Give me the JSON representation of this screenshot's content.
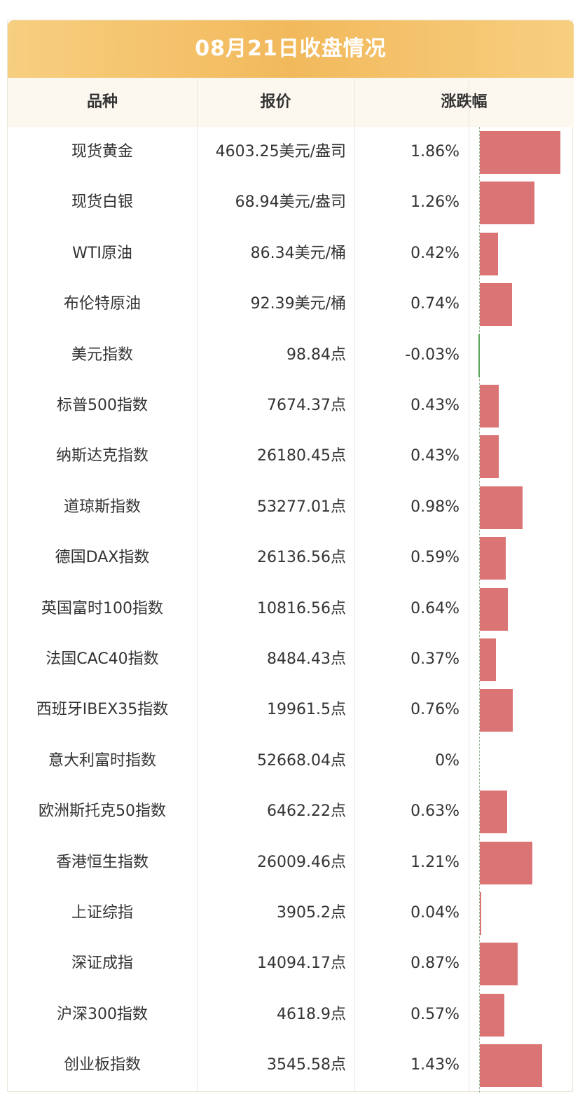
{
  "header": {
    "title": "08月21日收盘情况"
  },
  "table": {
    "columns": [
      "品种",
      "报价",
      "涨跌幅"
    ],
    "rows": [
      {
        "name": "现货黄金",
        "price": "4603.25美元/盎司",
        "change": {
          "value": 1.86,
          "label": "1.86%"
        }
      },
      {
        "name": "现货白银",
        "price": "68.94美元/盎司",
        "change": {
          "value": 1.26,
          "label": "1.26%"
        }
      },
      {
        "name": "WTI原油",
        "price": "86.34美元/桶",
        "change": {
          "value": 0.42,
          "label": "0.42%"
        }
      },
      {
        "name": "布伦特原油",
        "price": "92.39美元/桶",
        "change": {
          "value": 0.74,
          "label": "0.74%"
        }
      },
      {
        "name": "美元指数",
        "price": "98.84点",
        "change": {
          "value": -0.03,
          "label": "-0.03%"
        }
      },
      {
        "name": "标普500指数",
        "price": "7674.37点",
        "change": {
          "value": 0.43,
          "label": "0.43%"
        }
      },
      {
        "name": "纳斯达克指数",
        "price": "26180.45点",
        "change": {
          "value": 0.43,
          "label": "0.43%"
        }
      },
      {
        "name": "道琼斯指数",
        "price": "53277.01点",
        "change": {
          "value": 0.98,
          "label": "0.98%"
        }
      },
      {
        "name": "德国DAX指数",
        "price": "26136.56点",
        "change": {
          "value": 0.59,
          "label": "0.59%"
        }
      },
      {
        "name": "英国富时100指数",
        "price": "10816.56点",
        "change": {
          "value": 0.64,
          "label": "0.64%"
        }
      },
      {
        "name": "法国CAC40指数",
        "price": "8484.43点",
        "change": {
          "value": 0.37,
          "label": "0.37%"
        }
      },
      {
        "name": "西班牙IBEX35指数",
        "price": "19961.5点",
        "change": {
          "value": 0.76,
          "label": "0.76%"
        }
      },
      {
        "name": "意大利富时指数",
        "price": "52668.04点",
        "change": {
          "value": 0,
          "label": "0%"
        }
      },
      {
        "name": "欧洲斯托克50指数",
        "price": "6462.22点",
        "change": {
          "value": 0.63,
          "label": "0.63%"
        }
      },
      {
        "name": "香港恒生指数",
        "price": "26009.46点",
        "change": {
          "value": 1.21,
          "label": "1.21%"
        }
      },
      {
        "name": "上证综指",
        "price": "3905.2点",
        "change": {
          "value": 0.04,
          "label": "0.04%"
        }
      },
      {
        "name": "深证成指",
        "price": "14094.17点",
        "change": {
          "value": 0.87,
          "label": "0.87%"
        }
      },
      {
        "name": "沪深300指数",
        "price": "4618.9点",
        "change": {
          "value": 0.57,
          "label": "0.57%"
        }
      },
      {
        "name": "创业板指数",
        "price": "3545.58点",
        "change": {
          "value": 1.43,
          "label": "1.43%"
        }
      }
    ]
  }
}
